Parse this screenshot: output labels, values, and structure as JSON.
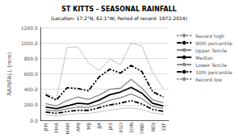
{
  "chart_data": {
    "type": "line",
    "title": "ST KITTS - SEASONAL RAINFALL",
    "subtitle": "(Location: 17.2°N, 62.1°W; Period of record: 1972-2014)",
    "ylabel": "RAINFALL (mm)",
    "categories": [
      "JFM",
      "FMA",
      "MAM",
      "AMJ",
      "MJJ",
      "JJA",
      "JAS",
      "ASO",
      "SON",
      "OND",
      "NDJ",
      "DJF"
    ],
    "series": [
      {
        "name": "Record high",
        "color": "#888888",
        "line_style": "dotted",
        "values": [
          360,
          270,
          940,
          950,
          740,
          640,
          790,
          720,
          1000,
          960,
          620,
          410
        ]
      },
      {
        "name": "90th percentile",
        "color": "#000000",
        "line_style": "dashdot",
        "values": [
          330,
          260,
          420,
          410,
          380,
          560,
          660,
          610,
          710,
          630,
          370,
          300
        ]
      },
      {
        "name": "Upper Tercile",
        "color": "#888888",
        "line_style": "solid",
        "values": [
          215,
          185,
          255,
          300,
          270,
          325,
          400,
          415,
          530,
          415,
          265,
          225
        ]
      },
      {
        "name": "Median",
        "color": "#000000",
        "line_style": "solid",
        "values": [
          170,
          150,
          185,
          220,
          210,
          260,
          330,
          365,
          425,
          350,
          220,
          185
        ]
      },
      {
        "name": "Lower Tercile",
        "color": "#888888",
        "line_style": "solid",
        "values": [
          135,
          120,
          148,
          172,
          165,
          205,
          260,
          290,
          340,
          280,
          180,
          152
        ]
      },
      {
        "name": "10th percentile",
        "color": "#000000",
        "line_style": "dashdot",
        "values": [
          105,
          90,
          112,
          128,
          128,
          162,
          198,
          220,
          255,
          210,
          140,
          115
        ]
      },
      {
        "name": "Record low",
        "color": "#888888",
        "line_style": "dotted",
        "values": [
          65,
          58,
          72,
          88,
          88,
          108,
          130,
          150,
          160,
          140,
          95,
          80
        ]
      }
    ],
    "ylim": [
      0,
      1200
    ],
    "yticks": [
      {
        "value": 0,
        "label": "0.0"
      },
      {
        "value": 200,
        "label": "200.0"
      },
      {
        "value": 400,
        "label": "400.0"
      },
      {
        "value": 600,
        "label": "600.0"
      },
      {
        "value": 800,
        "label": "800.0"
      },
      {
        "value": 1000,
        "label": "1000.0"
      },
      {
        "value": 1200,
        "label": "1200.0"
      }
    ],
    "grid": true,
    "legend": "right"
  }
}
